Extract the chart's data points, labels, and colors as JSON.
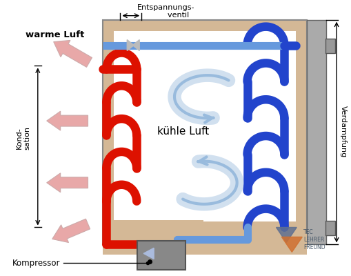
{
  "bg_color": "#ffffff",
  "wall_color": "#d4b896",
  "inner_bg": "#ffffff",
  "red_pipe": "#dd1100",
  "blue_pipe": "#2244cc",
  "light_blue_pipe": "#6699dd",
  "pink_arrow": "#e8a8a8",
  "light_blue_arrow": "#99bbdd",
  "gray_box": "#888888",
  "label_warme_luft": "warme Luft",
  "label_kondensation": "Kond-\nsation",
  "label_kuhle_luft": "kühle Luft",
  "label_entspannungsventil": "Entspannungs-\n          ventil",
  "label_kompressor": "Kompressor",
  "label_verdampfung": "Verdampfung"
}
